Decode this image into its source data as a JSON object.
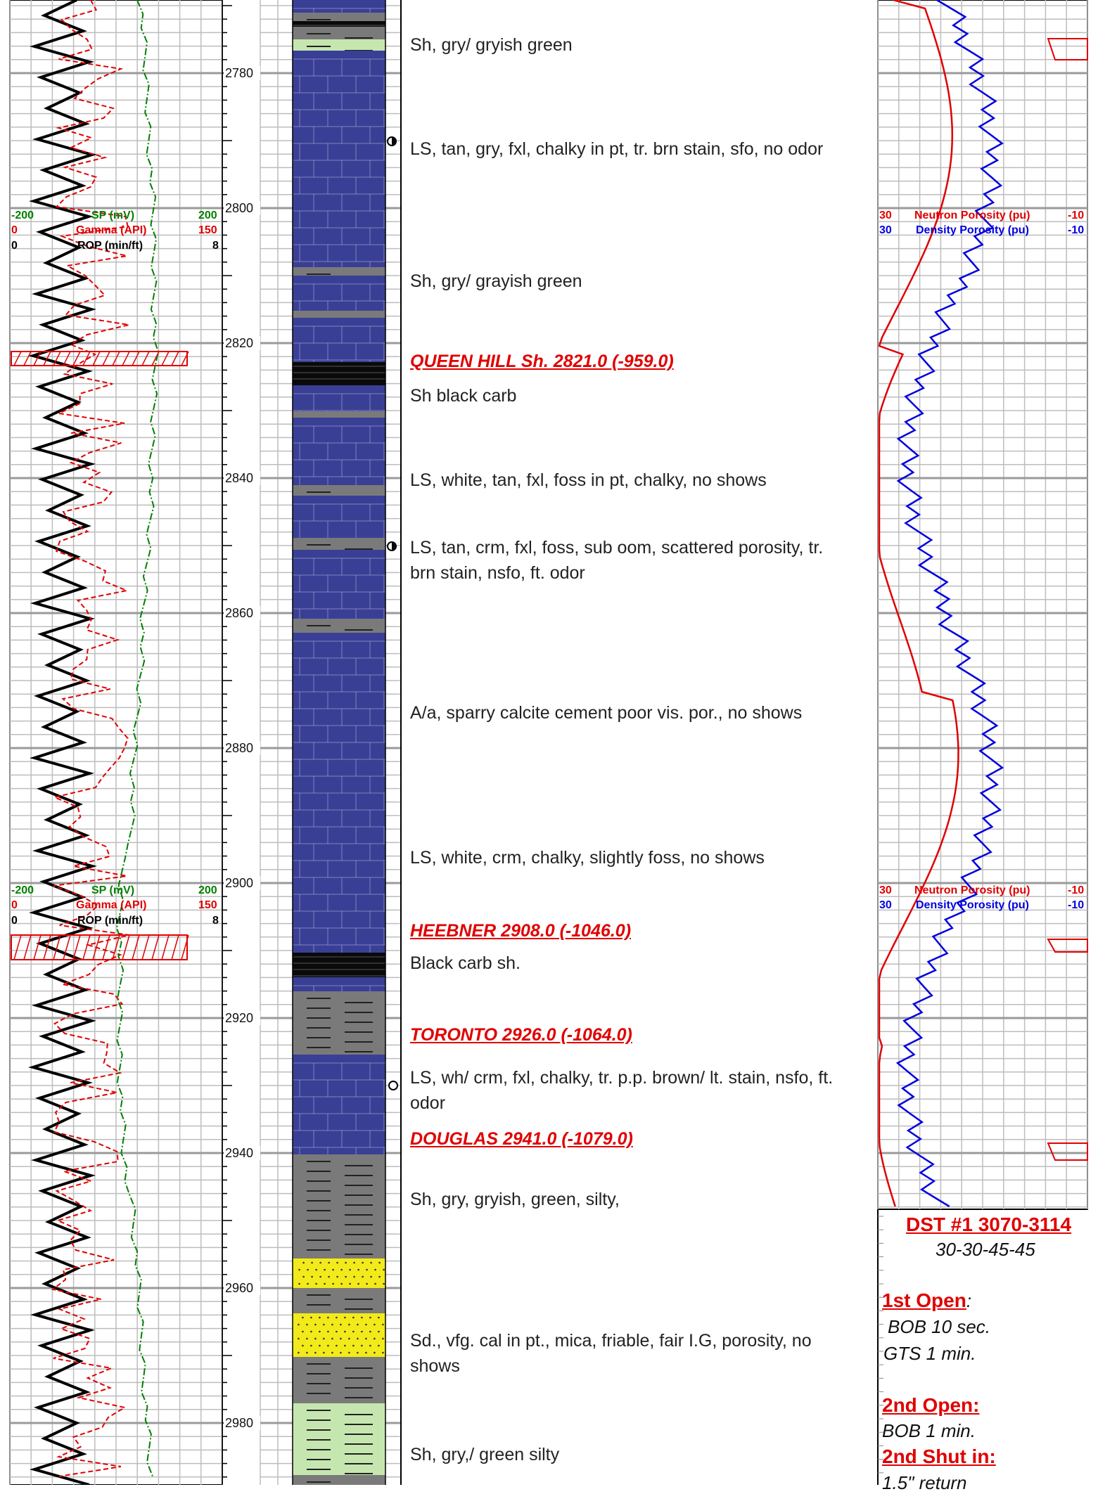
{
  "depth_track": {
    "labels": [
      "2780",
      "2800",
      "2820",
      "2840",
      "2860",
      "2880",
      "2900",
      "2920",
      "2940",
      "2960",
      "2980"
    ]
  },
  "left_headers": [
    {
      "sp": {
        "min": "-200",
        "name": "SP (mV)",
        "max": "200"
      },
      "gamma": {
        "min": "0",
        "name": "Gamma (API)",
        "max": "150"
      },
      "rop": {
        "min": "0",
        "name": "ROP (min/ft)",
        "max": "8"
      }
    },
    {
      "sp": {
        "min": "-200",
        "name": "SP (mV)",
        "max": "200"
      },
      "gamma": {
        "min": "0",
        "name": "Gamma (API)",
        "max": "150"
      },
      "rop": {
        "min": "0",
        "name": "ROP (min/ft)",
        "max": "8"
      }
    }
  ],
  "right_headers": [
    {
      "neutron": {
        "min": "30",
        "name": "Neutron Porosity (pu)",
        "max": "-10"
      },
      "density": {
        "min": "30",
        "name": "Density Porosity (pu)",
        "max": "-10"
      }
    },
    {
      "neutron": {
        "min": "30",
        "name": "Neutron Porosity (pu)",
        "max": "-10"
      },
      "density": {
        "min": "30",
        "name": "Density Porosity (pu)",
        "max": "-10"
      }
    }
  ],
  "descriptions": [
    {
      "text": "Sh, gry/ gryish green"
    },
    {
      "text": "LS, tan, gry, fxl, chalky in pt, tr. brn stain, sfo, no odor"
    },
    {
      "text": "Sh, gry/ grayish green"
    },
    {
      "text": "Sh black carb"
    },
    {
      "text": "LS, white, tan, fxl, foss in pt, chalky, no shows"
    },
    {
      "text": "LS, tan, crm, fxl, foss, sub oom, scattered porosity, tr. brn stain, nsfo, ft. odor"
    },
    {
      "text": "A/a, sparry calcite cement poor vis. por., no shows"
    },
    {
      "text": "LS, white, crm, chalky, slightly foss, no shows"
    },
    {
      "text": "Black carb  sh."
    },
    {
      "text": "LS, wh/ crm, fxl, chalky, tr. p.p. brown/ lt. stain, nsfo, ft. odor"
    },
    {
      "text": "Sh, gry, gryish, green, silty,"
    },
    {
      "text": "Sd., vfg. cal in pt., mica, friable, fair I.G, porosity, no shows"
    },
    {
      "text": "Sh, gry,/ green silty"
    }
  ],
  "formations": [
    {
      "text": "QUEEN HILL Sh.  2821.0 (-959.0)"
    },
    {
      "text": "HEEBNER  2908.0 (-1046.0)"
    },
    {
      "text": "TORONTO  2926.0 (-1064.0)"
    },
    {
      "text": "DOUGLAS  2941.0 (-1079.0)"
    }
  ],
  "dst": {
    "title": "DST #1 3070-3114",
    "times": "30-30-45-45",
    "first_open_label": "1st Open",
    "first_open_colon": ":",
    "line1": "BOB 10 sec.",
    "line2": "GTS 1 min.",
    "second_open_label": "2nd Open:",
    "line3": "BOB 1 min.",
    "second_shut_label": "2nd Shut in:",
    "line4": "1.5\" return"
  },
  "lithology_colors": {
    "limestone": "#3a3f96",
    "shale_gray": "#7a7a7a",
    "shale_black": "#0a0a0a",
    "sand": "#f2ea1a",
    "shale_green": "#c6e6b0",
    "neutron": "#e00000",
    "density": "#0000e0",
    "sp": "#008000",
    "gamma": "#e00000",
    "rop": "#000000"
  }
}
